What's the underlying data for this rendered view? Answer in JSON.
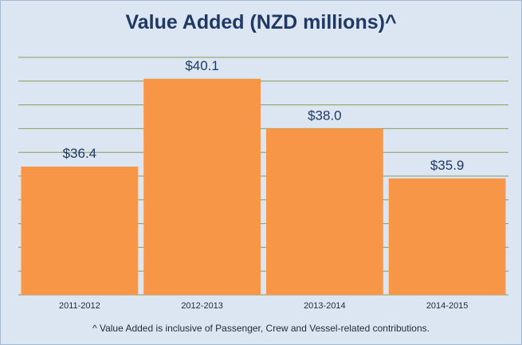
{
  "chart_data": {
    "type": "bar",
    "title": "Value Added (NZD millions)^",
    "categories": [
      "2011-2012",
      "2012-2013",
      "2013-2014",
      "2014-2015"
    ],
    "values": [
      36.4,
      40.1,
      38.0,
      35.9
    ],
    "data_labels": [
      "$36.4",
      "$40.1",
      "$38.0",
      "$35.9"
    ],
    "ylim": [
      31,
      41
    ],
    "grid": true,
    "bar_color": "#f79646",
    "grid_color": "#8d9a5a",
    "footnote": "^ Value Added  is inclusive of Passenger, Crew and Vessel-related contributions."
  }
}
